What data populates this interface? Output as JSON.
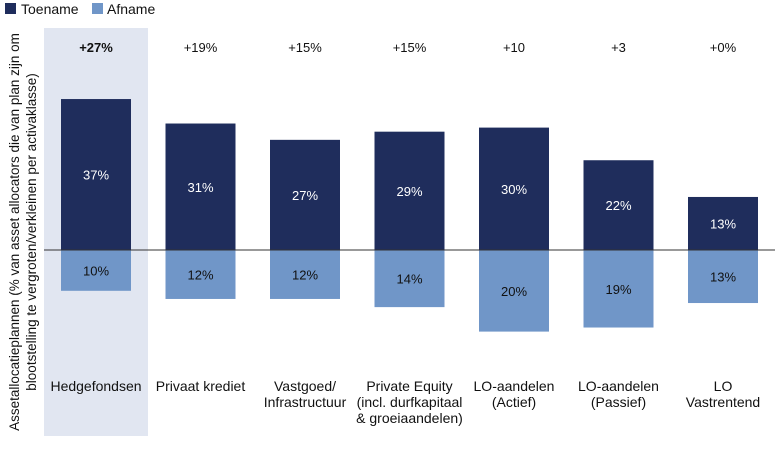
{
  "chart_data": {
    "type": "bar",
    "stacked_diverging": true,
    "legend": [
      {
        "name": "Toename",
        "color": "#1f2d5c"
      },
      {
        "name": "Afname",
        "color": "#7096c8"
      }
    ],
    "ylabel_lines": [
      "Assetallocatieplannen (% van asset allocators die van plan zijn om",
      "blootstelling te vergroten/verkleinen per activaklasse)"
    ],
    "categories": [
      {
        "label": [
          "Hedgefondsen"
        ],
        "net": "+27%",
        "increase": 37,
        "decrease": 10,
        "increase_label": "37%",
        "decrease_label": "10%",
        "highlight": true
      },
      {
        "label": [
          "Privaat krediet"
        ],
        "net": "+19%",
        "increase": 31,
        "decrease": 12,
        "increase_label": "31%",
        "decrease_label": "12%",
        "highlight": false
      },
      {
        "label": [
          "Vastgoed/",
          "Infrastructuur"
        ],
        "net": "+15%",
        "increase": 27,
        "decrease": 12,
        "increase_label": "27%",
        "decrease_label": "12%",
        "highlight": false
      },
      {
        "label": [
          "Private Equity",
          "(incl. durfkapitaal",
          "& groeiaandelen)"
        ],
        "net": "+15%",
        "increase": 29,
        "decrease": 14,
        "increase_label": "29%",
        "decrease_label": "14%",
        "highlight": false
      },
      {
        "label": [
          "LO-aandelen",
          "(Actief)"
        ],
        "net": "+10",
        "increase": 30,
        "decrease": 20,
        "increase_label": "30%",
        "decrease_label": "20%",
        "highlight": false
      },
      {
        "label": [
          "LO-aandelen",
          "(Passief)"
        ],
        "net": "+3",
        "increase": 22,
        "decrease": 19,
        "increase_label": "22%",
        "decrease_label": "19%",
        "highlight": false
      },
      {
        "label": [
          "LO",
          "Vastrentend"
        ],
        "net": "+0%",
        "increase": 13,
        "decrease": 13,
        "increase_label": "13%",
        "decrease_label": "13%",
        "highlight": false
      }
    ],
    "colors": {
      "increase": "#1f2d5c",
      "decrease": "#7096c8",
      "highlight_bg": "#e1e6f1",
      "zero_line": "#333333"
    }
  }
}
